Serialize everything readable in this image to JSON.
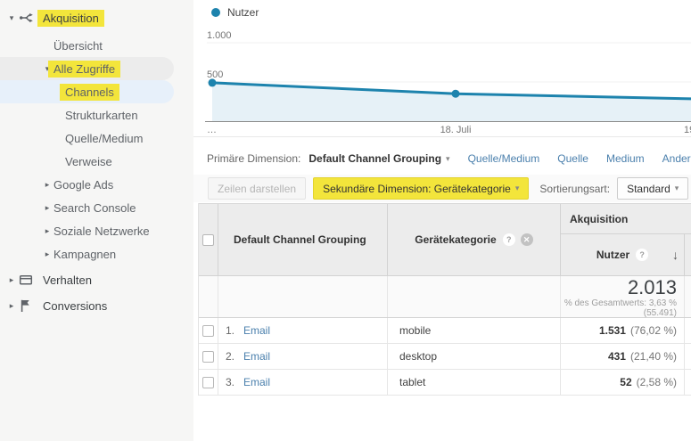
{
  "colors": {
    "line_blue": "#1d83ad",
    "area_fill": "#e6f1f7",
    "link_blue": "#4b80ad",
    "highlight_yellow": "#f3e53b",
    "selected_pill_blue": "#e7f0fa",
    "hover_pill_gray": "#ececec"
  },
  "sidebar": {
    "items": [
      {
        "label": "Akquisition",
        "level": 1,
        "arrow": "down",
        "icon": "acquisition",
        "highlight": true
      },
      {
        "label": "Übersicht",
        "level": 2
      },
      {
        "label": "Alle Zugriffe",
        "level": 2,
        "arrow": "down",
        "highlight": true,
        "pill": "gray"
      },
      {
        "label": "Channels",
        "level": 3,
        "highlight": true,
        "pill": "blue",
        "selected": true
      },
      {
        "label": "Strukturkarten",
        "level": 3
      },
      {
        "label": "Quelle/Medium",
        "level": 3
      },
      {
        "label": "Verweise",
        "level": 3
      },
      {
        "label": "Google Ads",
        "level": 2,
        "arrow": "right"
      },
      {
        "label": "Search Console",
        "level": 2,
        "arrow": "right"
      },
      {
        "label": "Soziale Netzwerke",
        "level": 2,
        "arrow": "right"
      },
      {
        "label": "Kampagnen",
        "level": 2,
        "arrow": "right"
      },
      {
        "label": "Verhalten",
        "level": 1,
        "arrow": "right",
        "icon": "behavior"
      },
      {
        "label": "Conversions",
        "level": 1,
        "arrow": "right",
        "icon": "flag"
      }
    ]
  },
  "chart_data": {
    "type": "area",
    "series": [
      {
        "name": "Nutzer",
        "values": [
          490,
          350,
          285
        ]
      }
    ],
    "x_labels": [
      "…",
      "18. Juli",
      "19"
    ],
    "y_ticks": [
      1000,
      500
    ],
    "y_tick_labels": [
      "1.000",
      "500"
    ],
    "ylim": [
      0,
      1000
    ],
    "grid": true,
    "legend_position": "top-left",
    "line_color": "#1d83ad"
  },
  "dimension_bar": {
    "primary_label": "Primäre Dimension:",
    "primary_selected": "Default Channel Grouping",
    "links": [
      "Quelle/Medium",
      "Quelle",
      "Medium"
    ],
    "more_label": "Andere"
  },
  "toolbar": {
    "plot_rows_label": "Zeilen darstellen",
    "secondary_dimension_label": "Sekundäre Dimension: Gerätekategorie",
    "sort_label": "Sortierungsart:",
    "sort_value": "Standard"
  },
  "table": {
    "columns": {
      "channel": "Default Channel Grouping",
      "device": "Gerätekategorie",
      "group": "Akquisition",
      "metric": "Nutzer"
    },
    "summary": {
      "value": "2.013",
      "percent_line": "% des Gesamtwerts: 3,63 %",
      "total_line": "(55.491)"
    },
    "rows": [
      {
        "index": "1.",
        "channel": "Email",
        "device": "mobile",
        "value": "1.531",
        "percent": "(76,02 %)"
      },
      {
        "index": "2.",
        "channel": "Email",
        "device": "desktop",
        "value": "431",
        "percent": "(21,40 %)"
      },
      {
        "index": "3.",
        "channel": "Email",
        "device": "tablet",
        "value": "52",
        "percent": "(2,58 %)"
      }
    ]
  }
}
